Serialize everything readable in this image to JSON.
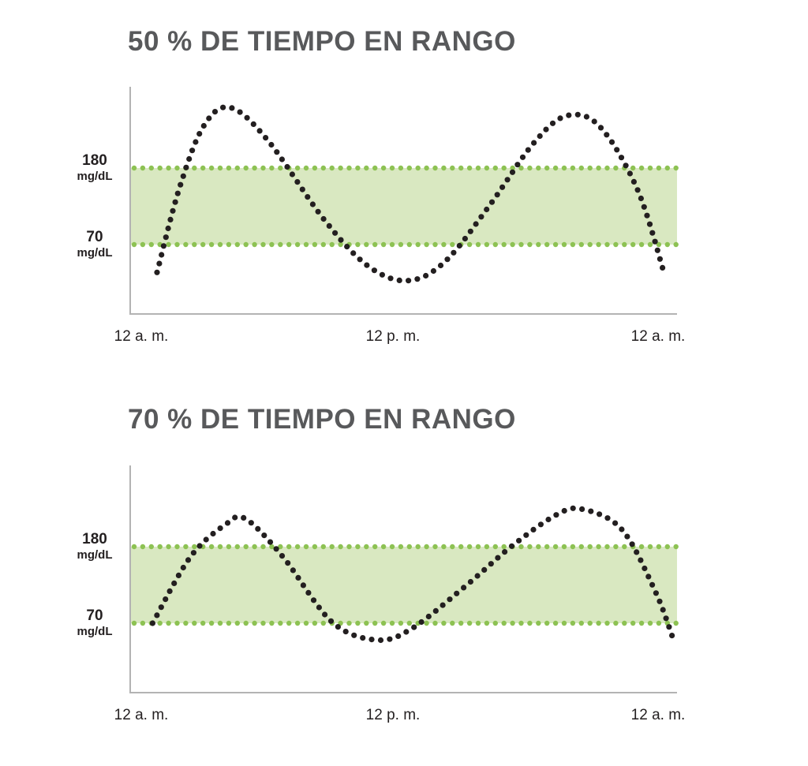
{
  "chart_data": [
    {
      "type": "line",
      "title": "50 % DE TIEMPO EN RANGO",
      "target_range": {
        "low": 70,
        "high": 180,
        "low_label": "70",
        "high_label": "180",
        "unit": "mg/dL",
        "band_color": "#d9e8c1",
        "line_color": "#8dc253"
      },
      "x_tick_labels": [
        "12 a. m.",
        "12 p. m.",
        "12 a. m."
      ],
      "x_range_hours": [
        0,
        24
      ],
      "y_range": [
        20,
        280
      ],
      "series": [
        {
          "style": "dotted",
          "color": "#231f20",
          "points": [
            {
              "x": 0.5,
              "y": 30
            },
            {
              "x": 1.5,
              "y": 150
            },
            {
              "x": 2.6,
              "y": 240
            },
            {
              "x": 3.8,
              "y": 267
            },
            {
              "x": 5.5,
              "y": 220
            },
            {
              "x": 8.0,
              "y": 108
            },
            {
              "x": 10.0,
              "y": 40
            },
            {
              "x": 11.8,
              "y": 18
            },
            {
              "x": 13.5,
              "y": 45
            },
            {
              "x": 15.5,
              "y": 125
            },
            {
              "x": 17.5,
              "y": 215
            },
            {
              "x": 19.0,
              "y": 255
            },
            {
              "x": 20.5,
              "y": 240
            },
            {
              "x": 22.2,
              "y": 150
            },
            {
              "x": 23.4,
              "y": 31
            }
          ]
        }
      ]
    },
    {
      "type": "line",
      "title": "70 % DE TIEMPO EN RANGO",
      "target_range": {
        "low": 70,
        "high": 180,
        "low_label": "70",
        "high_label": "180",
        "unit": "mg/dL",
        "band_color": "#d9e8c1",
        "line_color": "#8dc253"
      },
      "x_tick_labels": [
        "12 a. m.",
        "12 p. m.",
        "12 a. m."
      ],
      "x_range_hours": [
        0,
        24
      ],
      "y_range": [
        20,
        280
      ],
      "series": [
        {
          "style": "dotted",
          "color": "#231f20",
          "points": [
            {
              "x": 0.3,
              "y": 70
            },
            {
              "x": 2.0,
              "y": 165
            },
            {
              "x": 3.6,
              "y": 212
            },
            {
              "x": 4.5,
              "y": 220
            },
            {
              "x": 6.2,
              "y": 165
            },
            {
              "x": 8.4,
              "y": 72
            },
            {
              "x": 10.4,
              "y": 46
            },
            {
              "x": 12.0,
              "y": 62
            },
            {
              "x": 14.5,
              "y": 125
            },
            {
              "x": 16.5,
              "y": 180
            },
            {
              "x": 18.5,
              "y": 225
            },
            {
              "x": 19.7,
              "y": 234
            },
            {
              "x": 21.5,
              "y": 205
            },
            {
              "x": 23.0,
              "y": 117
            },
            {
              "x": 23.8,
              "y": 50
            }
          ]
        }
      ]
    }
  ]
}
